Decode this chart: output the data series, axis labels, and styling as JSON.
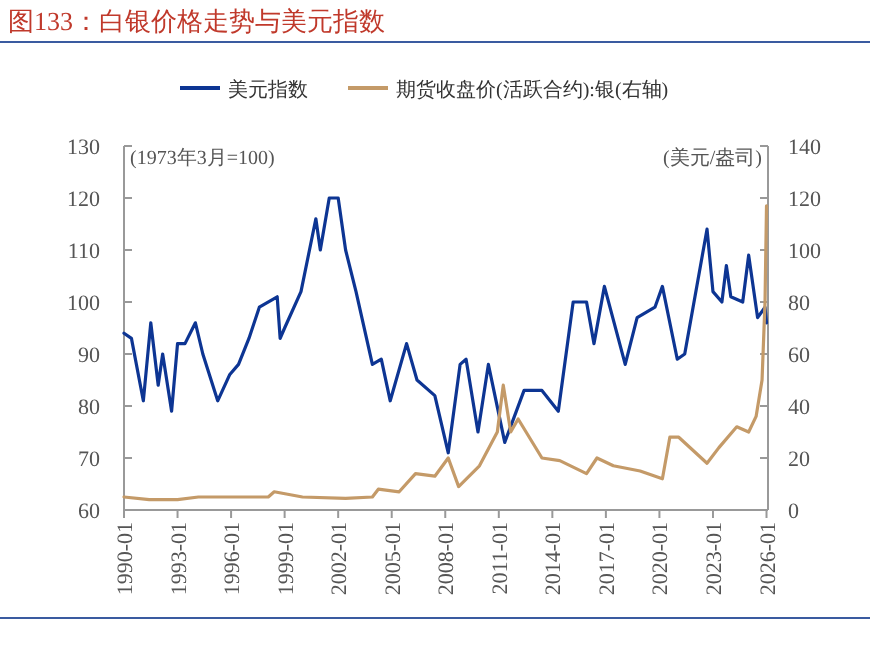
{
  "chart_data": {
    "type": "line",
    "title": "图133：白银价格走势与美元指数",
    "ylabel": "(1973年3月=100)",
    "y2label": "(美元/盎司)",
    "legend": "top",
    "grid": false,
    "xlim": [
      "1990-01",
      "2026-02"
    ],
    "xticks": [
      "1990-01",
      "1993-01",
      "1996-01",
      "1999-01",
      "2002-01",
      "2005-01",
      "2008-01",
      "2011-01",
      "2014-01",
      "2017-01",
      "2020-01",
      "2023-01",
      "2026-01"
    ],
    "ylim": [
      60,
      130
    ],
    "yticks": [
      60,
      70,
      80,
      90,
      100,
      110,
      120,
      130
    ],
    "y2lim": [
      0,
      140
    ],
    "y2ticks": [
      0,
      20,
      40,
      60,
      80,
      100,
      120,
      140
    ],
    "series": [
      {
        "name": "美元指数",
        "color": "#0d3593",
        "x": [
          "1990-01",
          "1990-06",
          "1990-12",
          "1991-02",
          "1991-07",
          "1991-12",
          "1992-03",
          "1992-09",
          "1993-01",
          "1993-06",
          "1994-01",
          "1994-06",
          "1995-04",
          "1995-12",
          "1996-06",
          "1997-01",
          "1997-08",
          "1998-08",
          "1998-10",
          "1999-01",
          "1999-12",
          "2000-10",
          "2001-01",
          "2001-07",
          "2002-01",
          "2002-06",
          "2003-01",
          "2003-12",
          "2004-06",
          "2004-12",
          "2005-11",
          "2006-06",
          "2007-06",
          "2008-03",
          "2008-11",
          "2009-03",
          "2009-11",
          "2010-06",
          "2011-05",
          "2012-06",
          "2013-06",
          "2014-05",
          "2015-03",
          "2015-12",
          "2016-05",
          "2016-12",
          "2018-02",
          "2018-10",
          "2019-10",
          "2020-03",
          "2021-01",
          "2021-06",
          "2022-09",
          "2023-01",
          "2023-07",
          "2023-10",
          "2024-01",
          "2024-09",
          "2025-01",
          "2025-07",
          "2025-12",
          "2026-01"
        ],
        "values": [
          94,
          93,
          84,
          81,
          96,
          84,
          90,
          79,
          92,
          92,
          96,
          90,
          81,
          86,
          88,
          93,
          99,
          101,
          93,
          95,
          102,
          116,
          110,
          120,
          120,
          110,
          102,
          88,
          89,
          81,
          92,
          85,
          82,
          71,
          88,
          89,
          75,
          88,
          73,
          83,
          83,
          79,
          100,
          100,
          92,
          103,
          88,
          97,
          99,
          103,
          89,
          90,
          114,
          102,
          100,
          107,
          101,
          100,
          109,
          97,
          99,
          96
        ]
      },
      {
        "name": "期货收盘价(活跃合约):银(右轴)",
        "color": "#c49a68",
        "axis": "y2",
        "x": [
          "1990-01",
          "1991-06",
          "1993-01",
          "1994-03",
          "1996-01",
          "1998-02",
          "1998-06",
          "2000-01",
          "2002-06",
          "2003-12",
          "2004-04",
          "2005-06",
          "2006-05",
          "2007-06",
          "2008-03",
          "2008-10",
          "2009-12",
          "2010-12",
          "2011-04",
          "2011-09",
          "2012-02",
          "2013-06",
          "2014-06",
          "2015-12",
          "2016-07",
          "2017-06",
          "2018-12",
          "2020-03",
          "2020-08",
          "2021-02",
          "2022-09",
          "2023-05",
          "2024-05",
          "2025-01",
          "2025-06",
          "2025-10",
          "2025-12",
          "2026-01"
        ],
        "values": [
          5,
          4,
          4,
          5,
          5,
          5,
          7,
          5,
          4.5,
          5,
          8,
          7,
          14,
          13,
          20,
          9,
          17,
          30,
          48,
          30,
          35,
          20,
          19,
          14,
          20,
          17,
          15,
          12,
          28,
          28,
          18,
          24,
          32,
          30,
          36,
          50,
          80,
          117
        ]
      }
    ]
  }
}
